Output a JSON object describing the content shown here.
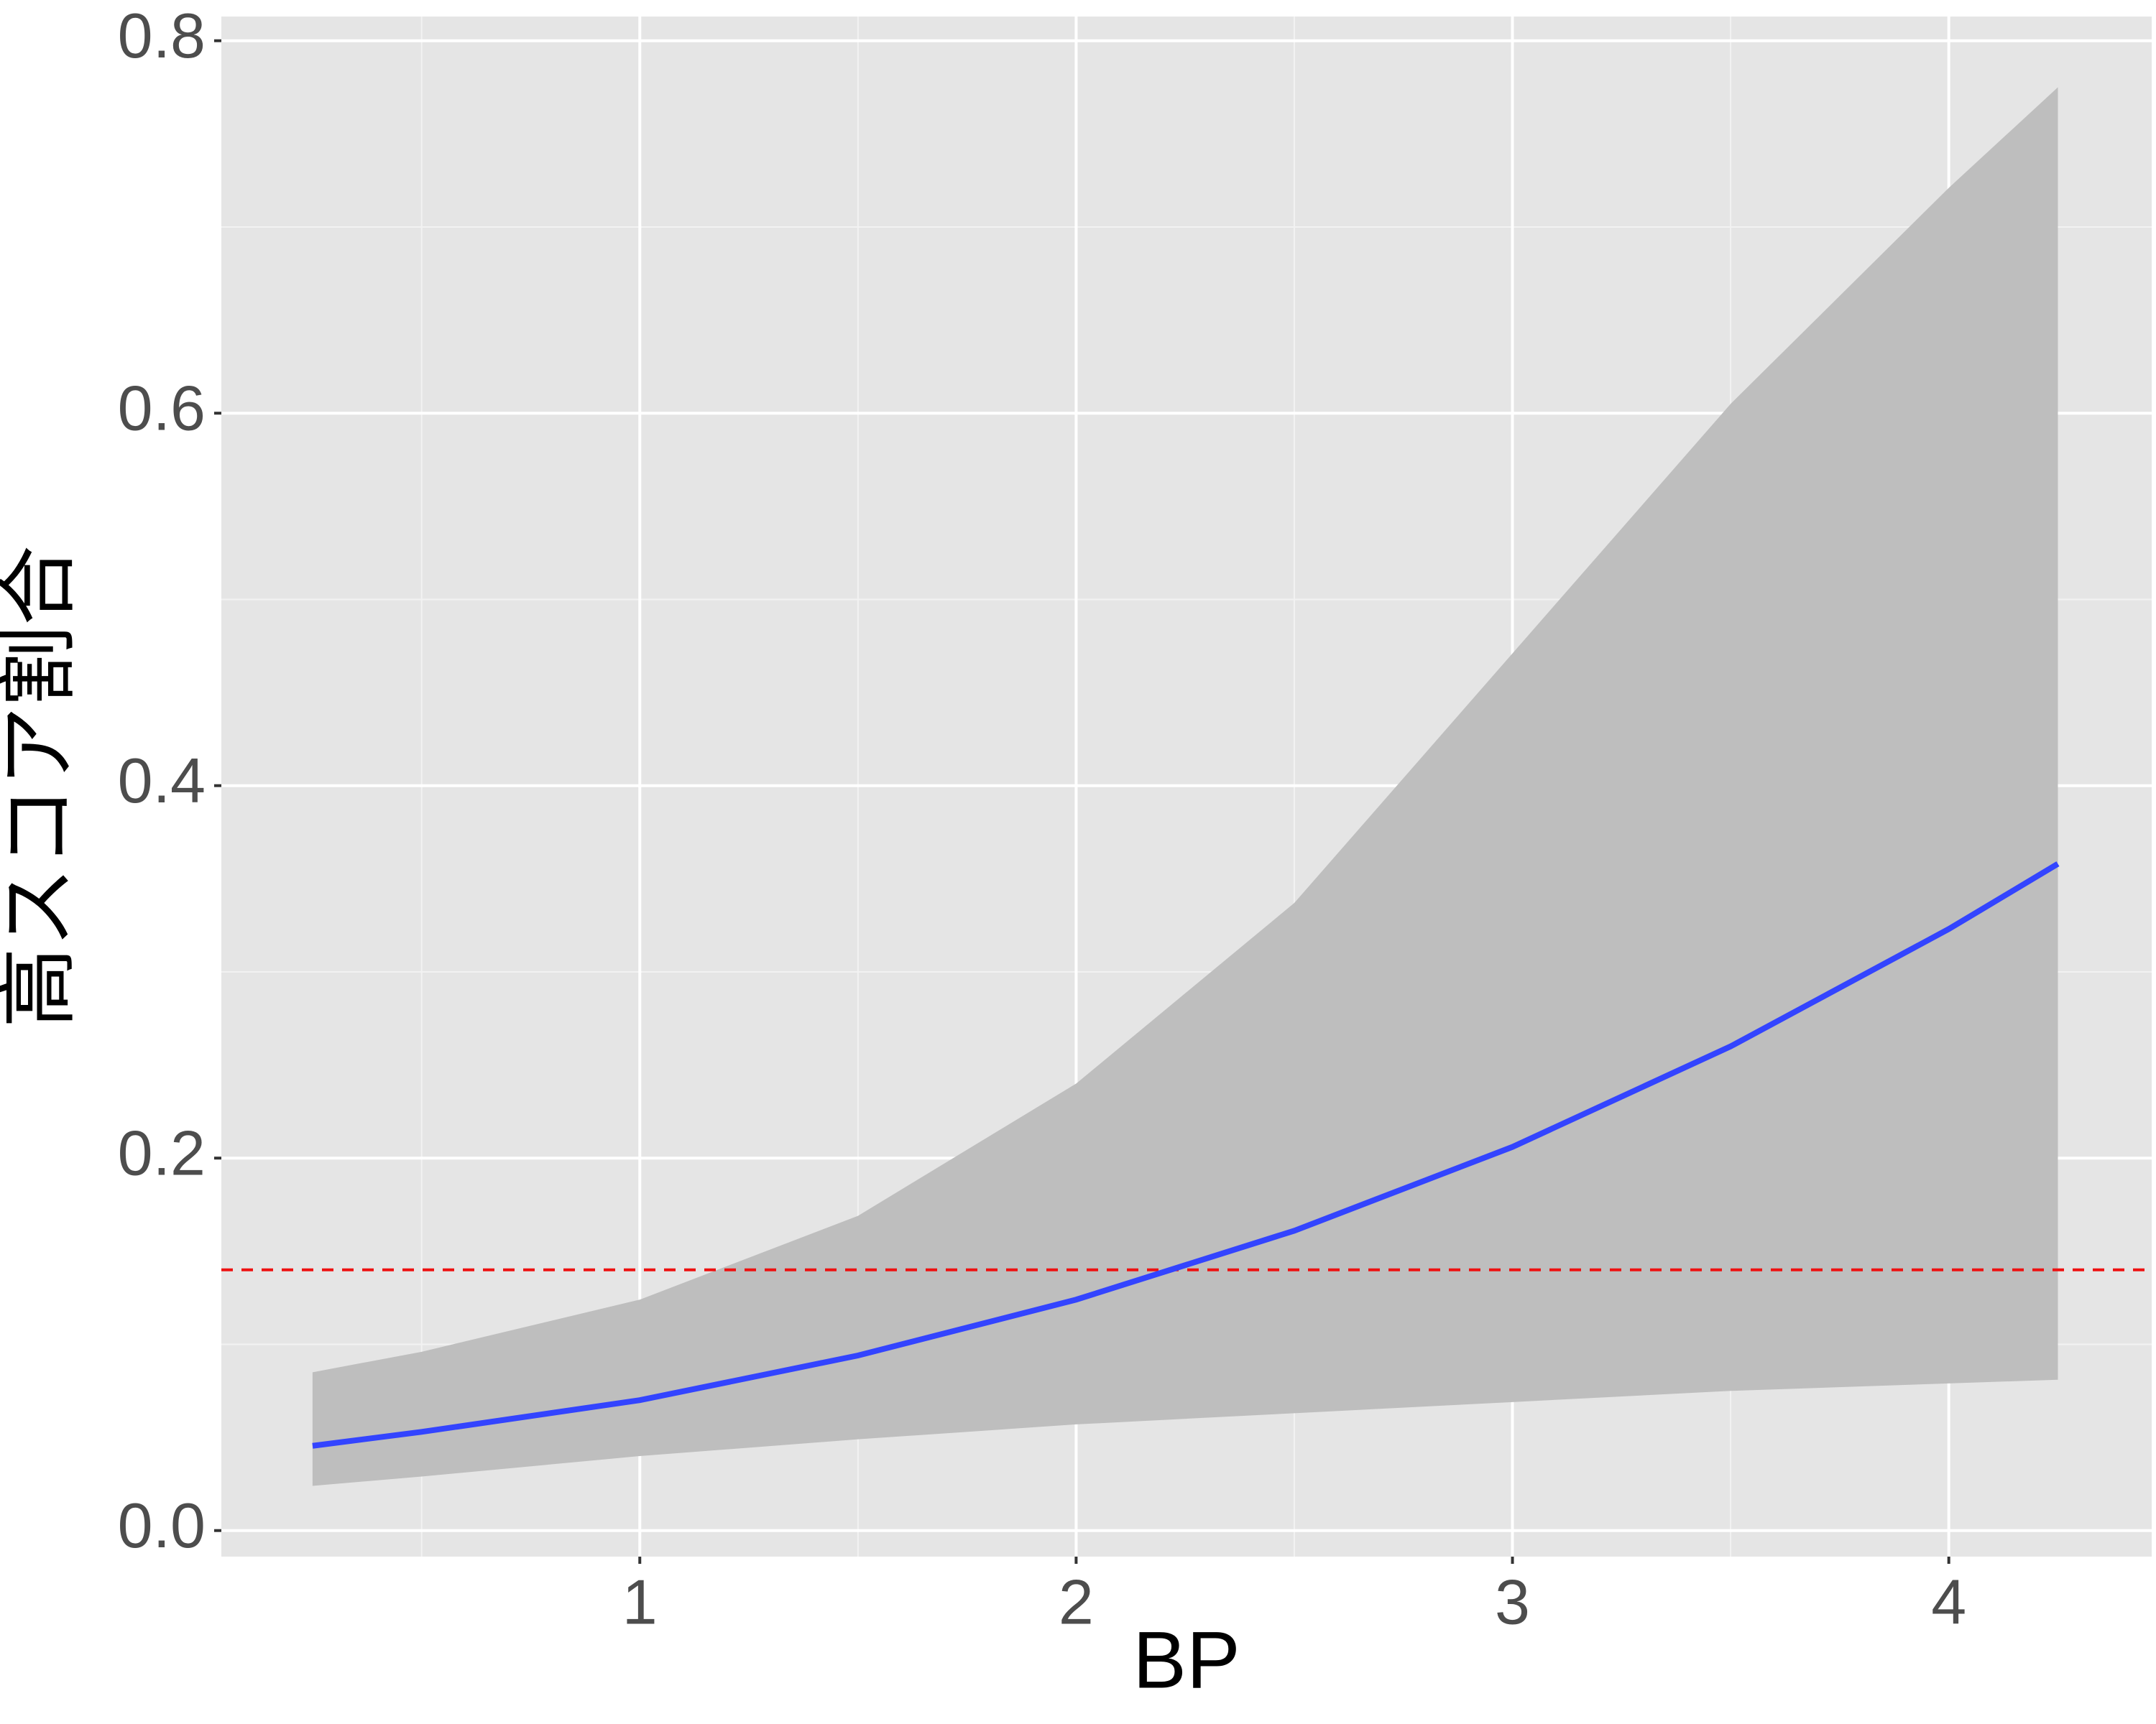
{
  "chart_data": {
    "type": "line",
    "x_label": "BP",
    "y_label": "高スコア割合",
    "x": [
      0.25,
      0.5,
      1,
      1.5,
      2,
      2.5,
      3,
      3.5,
      4,
      4.25
    ],
    "series": [
      {
        "color": "#3344ff",
        "values": [
          0.0455,
          0.053,
          0.07,
          0.094,
          0.124,
          0.161,
          0.206,
          0.26,
          0.323,
          0.358
        ],
        "lower": [
          0.024,
          0.029,
          0.04,
          0.049,
          0.057,
          0.063,
          0.069,
          0.075,
          0.079,
          0.081
        ],
        "upper": [
          0.085,
          0.096,
          0.124,
          0.169,
          0.24,
          0.337,
          0.471,
          0.605,
          0.721,
          0.775
        ],
        "band_color": "#bebebe"
      }
    ],
    "hline": {
      "value": 0.14,
      "color": "#ee1111",
      "dashed": true
    },
    "xlim": [
      0.041,
      4.465
    ],
    "xticks": [
      1,
      2,
      3,
      4
    ],
    "xminorticks": [
      0.5,
      1.5,
      2.5,
      3.5
    ],
    "ylim": [
      -0.014,
      0.813
    ],
    "yticks": [
      {
        "value": 0,
        "label": "0.0"
      },
      0.2,
      0.4,
      0.6,
      0.8
    ],
    "yminorticks": [
      0.1,
      0.3,
      0.5,
      0.7
    ],
    "grid": true
  }
}
